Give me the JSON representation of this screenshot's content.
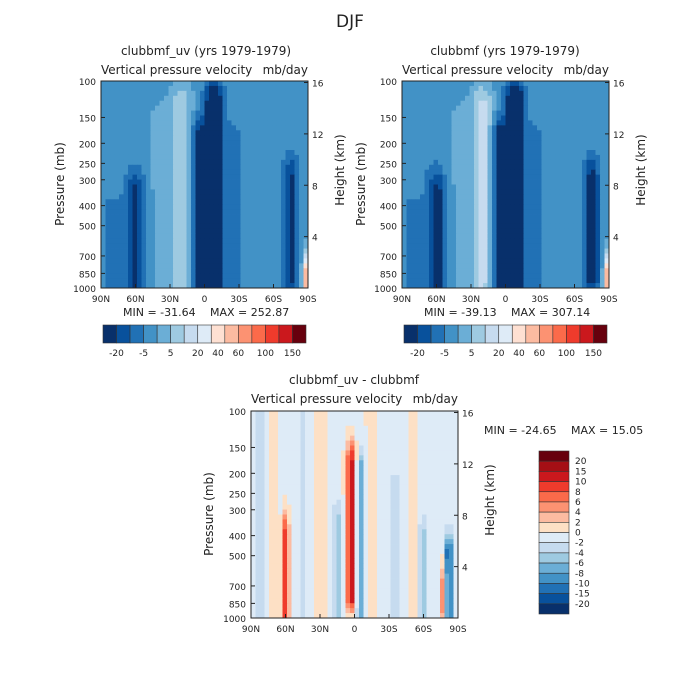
{
  "figure_title": "DJF",
  "colors": {
    "neg": [
      "#08306b",
      "#08519c",
      "#2171b5",
      "#4292c6",
      "#6baed6",
      "#9ecae1",
      "#c6dbef",
      "#deebf7"
    ],
    "pos": [
      "#fee0d2",
      "#fcbba1",
      "#fc9272",
      "#fb6a4a",
      "#ef3b2c",
      "#cb181d",
      "#a50f15",
      "#67000d"
    ],
    "diff_bg": "#e6eef7",
    "axis": "#222222"
  },
  "chart_data": [
    {
      "id": "panel-left",
      "type": "heatmap",
      "title": "clubbmf_uv (yrs 1979-1979)",
      "left_label": "Vertical pressure velocity",
      "right_label": "mb/day",
      "ylabel": "Pressure (mb)",
      "y2label": "Height (km)",
      "x_ticks": [
        "90N",
        "60N",
        "30N",
        "0",
        "30S",
        "60S",
        "90S"
      ],
      "y_ticks": [
        "100",
        "150",
        "200",
        "250",
        "300",
        "400",
        "500",
        "700",
        "850",
        "1000"
      ],
      "y2_ticks": [
        "16",
        "12",
        "8",
        "4"
      ],
      "xlim": [
        90,
        -90
      ],
      "ylim": [
        100,
        1000
      ],
      "min_text": "MIN = -31.64",
      "max_text": "MAX = 252.87",
      "colorbar_labels": [
        "-20",
        "-5",
        "5",
        "20",
        "40",
        "60",
        "100",
        "150"
      ],
      "base_level": -8,
      "features": [
        {
          "lat": 80,
          "p_top": 450,
          "p_bot": 1000,
          "width": 8,
          "value": -4
        },
        {
          "lat": 60,
          "p_top": 350,
          "p_bot": 1000,
          "width": 8,
          "value": -14
        },
        {
          "lat": 40,
          "p_top": 150,
          "p_bot": 900,
          "width": 12,
          "value": 4
        },
        {
          "lat": 20,
          "p_top": 130,
          "p_bot": 950,
          "width": 10,
          "value": 12
        },
        {
          "lat": 5,
          "p_top": 200,
          "p_bot": 1000,
          "width": 6,
          "value": -20
        },
        {
          "lat": -8,
          "p_top": 130,
          "p_bot": 1000,
          "width": 7,
          "value": -27
        },
        {
          "lat": -25,
          "p_top": 200,
          "p_bot": 900,
          "width": 8,
          "value": -4
        },
        {
          "lat": -55,
          "p_top": 350,
          "p_bot": 950,
          "width": 7,
          "value": 0
        },
        {
          "lat": -75,
          "p_top": 300,
          "p_bot": 900,
          "width": 6,
          "value": -14
        },
        {
          "lat": -87,
          "p_top": 850,
          "p_bot": 1000,
          "width": 2,
          "value": 40
        }
      ]
    },
    {
      "id": "panel-right",
      "type": "heatmap",
      "title": "clubbmf (yrs 1979-1979)",
      "left_label": "Vertical pressure velocity",
      "right_label": "mb/day",
      "ylabel": "Pressure (mb)",
      "y2label": "Height (km)",
      "x_ticks": [
        "90N",
        "60N",
        "30N",
        "0",
        "30S",
        "60S",
        "90S"
      ],
      "y_ticks": [
        "100",
        "150",
        "200",
        "250",
        "300",
        "400",
        "500",
        "700",
        "850",
        "1000"
      ],
      "y2_ticks": [
        "16",
        "12",
        "8",
        "4"
      ],
      "xlim": [
        90,
        -90
      ],
      "ylim": [
        100,
        1000
      ],
      "min_text": "MIN = -39.13",
      "max_text": "MAX = 307.14",
      "colorbar_labels": [
        "-20",
        "-5",
        "5",
        "20",
        "40",
        "60",
        "100",
        "150"
      ],
      "base_level": -8,
      "features": [
        {
          "lat": 80,
          "p_top": 450,
          "p_bot": 1000,
          "width": 8,
          "value": -4
        },
        {
          "lat": 60,
          "p_top": 350,
          "p_bot": 1000,
          "width": 8,
          "value": -16
        },
        {
          "lat": 40,
          "p_top": 150,
          "p_bot": 900,
          "width": 12,
          "value": 4
        },
        {
          "lat": 20,
          "p_top": 130,
          "p_bot": 950,
          "width": 10,
          "value": 14
        },
        {
          "lat": 5,
          "p_top": 200,
          "p_bot": 1000,
          "width": 6,
          "value": -22
        },
        {
          "lat": -8,
          "p_top": 130,
          "p_bot": 1000,
          "width": 7,
          "value": -30
        },
        {
          "lat": -25,
          "p_top": 200,
          "p_bot": 900,
          "width": 8,
          "value": -4
        },
        {
          "lat": -55,
          "p_top": 350,
          "p_bot": 950,
          "width": 7,
          "value": 0
        },
        {
          "lat": -75,
          "p_top": 300,
          "p_bot": 900,
          "width": 6,
          "value": -16
        },
        {
          "lat": -87,
          "p_top": 850,
          "p_bot": 1000,
          "width": 2,
          "value": 40
        }
      ]
    },
    {
      "id": "panel-diff",
      "type": "heatmap",
      "title": "clubbmf_uv - clubbmf",
      "left_label": "Vertical pressure velocity",
      "right_label": "mb/day",
      "ylabel": "Pressure (mb)",
      "y2label": "Height (km)",
      "x_ticks": [
        "90N",
        "60N",
        "30N",
        "0",
        "30S",
        "60S",
        "90S"
      ],
      "y_ticks": [
        "100",
        "150",
        "200",
        "250",
        "300",
        "400",
        "500",
        "700",
        "850",
        "1000"
      ],
      "y2_ticks": [
        "16",
        "12",
        "8",
        "4"
      ],
      "xlim": [
        90,
        -90
      ],
      "ylim": [
        100,
        1000
      ],
      "min_text": "MIN = -24.65",
      "max_text": "MAX =  15.05",
      "colorbar_labels": [
        "20",
        "15",
        "10",
        "8",
        "6",
        "4",
        "2",
        "0",
        "-2",
        "-4",
        "-6",
        "-8",
        "-10",
        "-15",
        "-20"
      ],
      "base_level": -0.5,
      "features": [
        {
          "lat": 82,
          "p_top": 100,
          "p_bot": 1000,
          "width": 4,
          "value": -2.5
        },
        {
          "lat": 70,
          "p_top": 100,
          "p_bot": 1000,
          "width": 4,
          "value": 1
        },
        {
          "lat": 60,
          "p_top": 400,
          "p_bot": 950,
          "width": 3,
          "value": 10
        },
        {
          "lat": 45,
          "p_top": 100,
          "p_bot": 900,
          "width": 4,
          "value": -3
        },
        {
          "lat": 30,
          "p_top": 100,
          "p_bot": 1000,
          "width": 5,
          "value": 1.5
        },
        {
          "lat": 15,
          "p_top": 350,
          "p_bot": 1000,
          "width": 4,
          "value": -5
        },
        {
          "lat": 3,
          "p_top": 180,
          "p_bot": 800,
          "width": 4,
          "value": 12
        },
        {
          "lat": -5,
          "p_top": 200,
          "p_bot": 1000,
          "width": 3,
          "value": -8
        },
        {
          "lat": -15,
          "p_top": 100,
          "p_bot": 1000,
          "width": 5,
          "value": 1.5
        },
        {
          "lat": -35,
          "p_top": 250,
          "p_bot": 900,
          "width": 6,
          "value": -3
        },
        {
          "lat": -50,
          "p_top": 100,
          "p_bot": 900,
          "width": 4,
          "value": 1.5
        },
        {
          "lat": -60,
          "p_top": 400,
          "p_bot": 1000,
          "width": 4,
          "value": -4
        },
        {
          "lat": -78,
          "p_top": 700,
          "p_bot": 900,
          "width": 3,
          "value": 8
        },
        {
          "lat": -82,
          "p_top": 500,
          "p_bot": 1000,
          "width": 3,
          "value": -15
        }
      ]
    }
  ]
}
